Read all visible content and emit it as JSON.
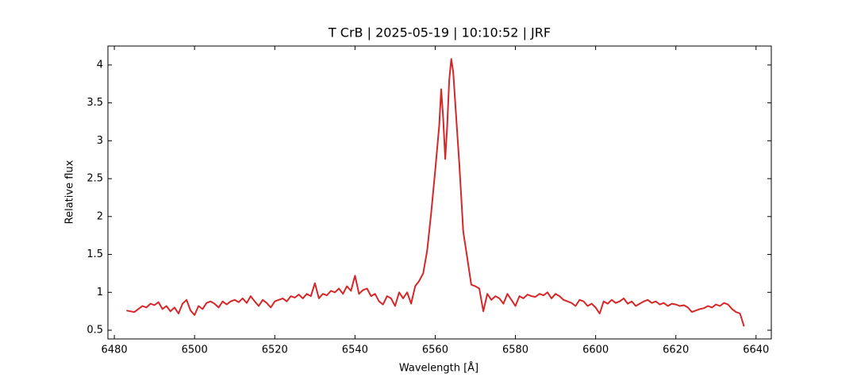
{
  "chart_data": {
    "type": "line",
    "title": "T CrB | 2025-05-19 | 10:10:52 | JRF",
    "x_label": "Wavelength [Å]",
    "y_label": "Relative flux",
    "xlim": [
      6478.4,
      6643.8
    ],
    "ylim": [
      0.385,
      4.25
    ],
    "xticks": [
      6480,
      6500,
      6520,
      6540,
      6560,
      6580,
      6600,
      6620,
      6640
    ],
    "yticks": [
      0.5,
      1.0,
      1.5,
      2.0,
      2.5,
      3.0,
      3.5,
      4.0
    ],
    "series": [
      {
        "color": "#d62728",
        "x": [
          6483,
          6484,
          6485,
          6486,
          6487,
          6488,
          6489,
          6490,
          6491,
          6492,
          6493,
          6494,
          6495,
          6496,
          6497,
          6498,
          6499,
          6500,
          6501,
          6502,
          6503,
          6504,
          6505,
          6506,
          6507,
          6508,
          6509,
          6510,
          6511,
          6512,
          6513,
          6514,
          6515,
          6516,
          6517,
          6518,
          6519,
          6520,
          6521,
          6522,
          6523,
          6524,
          6525,
          6526,
          6527,
          6528,
          6529,
          6530,
          6531,
          6532,
          6533,
          6534,
          6535,
          6536,
          6537,
          6538,
          6539,
          6540,
          6541,
          6542,
          6543,
          6544,
          6545,
          6546,
          6547,
          6548,
          6549,
          6550,
          6551,
          6552,
          6553,
          6554,
          6555,
          6556,
          6557,
          6558,
          6559,
          6560,
          6561,
          6561.5,
          6562,
          6562.5,
          6563,
          6563.5,
          6564,
          6564.5,
          6565,
          6566,
          6567,
          6568,
          6569,
          6570,
          6571,
          6572,
          6573,
          6574,
          6575,
          6576,
          6577,
          6578,
          6579,
          6580,
          6581,
          6582,
          6583,
          6584,
          6585,
          6586,
          6587,
          6588,
          6589,
          6590,
          6591,
          6592,
          6593,
          6594,
          6595,
          6596,
          6597,
          6598,
          6599,
          6600,
          6601,
          6602,
          6603,
          6604,
          6605,
          6606,
          6607,
          6608,
          6609,
          6610,
          6611,
          6612,
          6613,
          6614,
          6615,
          6616,
          6617,
          6618,
          6619,
          6620,
          6621,
          6622,
          6623,
          6624,
          6625,
          6626,
          6627,
          6628,
          6629,
          6630,
          6631,
          6632,
          6633,
          6634,
          6635,
          6636,
          6637
        ],
        "values": [
          0.76,
          0.75,
          0.74,
          0.78,
          0.82,
          0.8,
          0.85,
          0.83,
          0.87,
          0.78,
          0.82,
          0.75,
          0.8,
          0.72,
          0.85,
          0.9,
          0.76,
          0.7,
          0.82,
          0.78,
          0.86,
          0.88,
          0.85,
          0.8,
          0.88,
          0.84,
          0.88,
          0.9,
          0.87,
          0.92,
          0.86,
          0.95,
          0.88,
          0.82,
          0.9,
          0.86,
          0.8,
          0.88,
          0.9,
          0.92,
          0.88,
          0.95,
          0.93,
          0.97,
          0.92,
          0.98,
          0.95,
          1.12,
          0.92,
          0.98,
          0.96,
          1.02,
          1.0,
          1.05,
          0.98,
          1.08,
          1.02,
          1.22,
          0.98,
          1.03,
          1.05,
          0.95,
          0.98,
          0.88,
          0.84,
          0.95,
          0.92,
          0.82,
          1.0,
          0.92,
          1.0,
          0.85,
          1.08,
          1.15,
          1.25,
          1.55,
          2.05,
          2.6,
          3.2,
          3.68,
          3.3,
          2.76,
          3.2,
          3.8,
          4.08,
          3.9,
          3.5,
          2.7,
          1.8,
          1.45,
          1.1,
          1.08,
          1.05,
          0.75,
          0.98,
          0.9,
          0.95,
          0.92,
          0.85,
          0.98,
          0.9,
          0.82,
          0.95,
          0.92,
          0.97,
          0.95,
          0.94,
          0.98,
          0.96,
          1.0,
          0.92,
          0.98,
          0.95,
          0.9,
          0.88,
          0.86,
          0.82,
          0.9,
          0.88,
          0.82,
          0.85,
          0.8,
          0.72,
          0.88,
          0.85,
          0.9,
          0.86,
          0.88,
          0.92,
          0.85,
          0.88,
          0.82,
          0.85,
          0.88,
          0.9,
          0.86,
          0.88,
          0.84,
          0.86,
          0.82,
          0.85,
          0.84,
          0.82,
          0.83,
          0.8,
          0.74,
          0.76,
          0.78,
          0.79,
          0.82,
          0.8,
          0.84,
          0.82,
          0.86,
          0.84,
          0.78,
          0.74,
          0.72,
          0.55
        ]
      }
    ]
  }
}
